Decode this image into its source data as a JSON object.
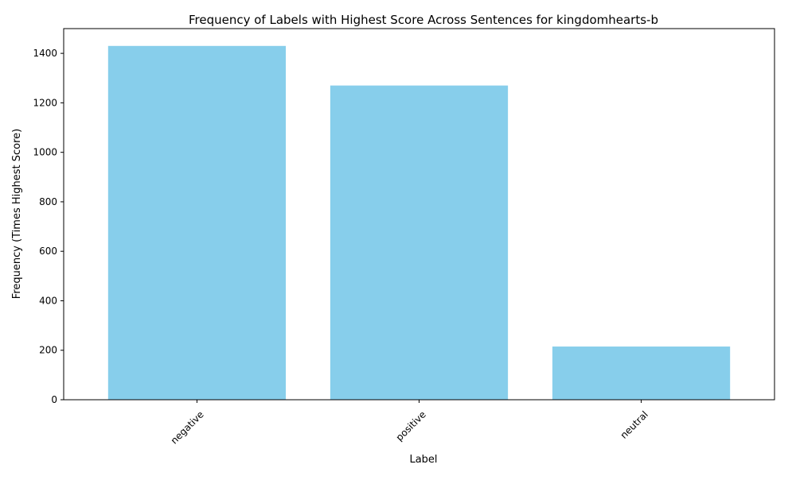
{
  "chart_data": {
    "type": "bar",
    "title": "Frequency of Labels with Highest Score Across Sentences for kingdomhearts-b",
    "xlabel": "Label",
    "ylabel": "Frequency (Times Highest Score)",
    "categories": [
      "negative",
      "positive",
      "neutral"
    ],
    "values": [
      1430,
      1270,
      215
    ],
    "ylim": [
      0,
      1500
    ],
    "yticks": [
      0,
      200,
      400,
      600,
      800,
      1000,
      1200,
      1400
    ],
    "bar_color": "#87CEEB",
    "grid": false,
    "legend": "none"
  }
}
